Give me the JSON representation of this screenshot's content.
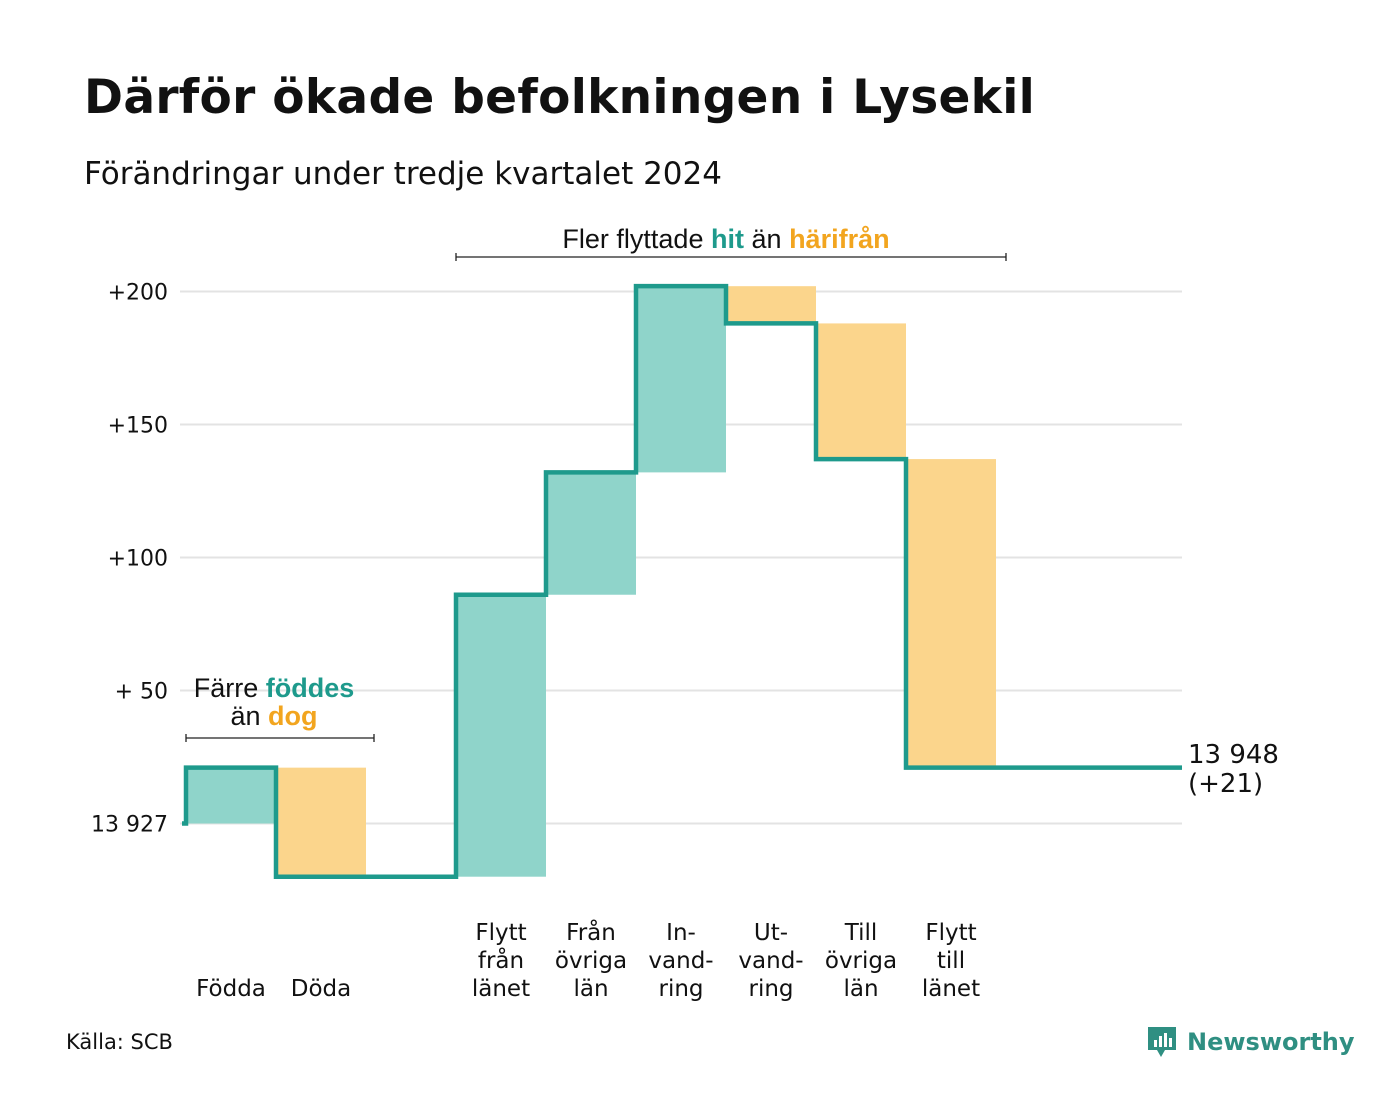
{
  "title": "Därför ökade befolkningen i Lysekil",
  "subtitle": "Förändringar under tredje kvartalet 2024",
  "source": "Källa: SCB",
  "brand": "Newsworthy",
  "colors": {
    "increase_fill": "#8fd4ca",
    "decrease_fill": "#fbd58c",
    "step_line": "#1e9a8c",
    "grid": "#e3e3e3",
    "highlight_in": "#1e9a8c",
    "highlight_out": "#f2a51f"
  },
  "annotations": {
    "natural": {
      "line1_a": "Färre",
      "line1_b": "föddes",
      "line2_a": "än",
      "line2_b": "dog"
    },
    "migration": {
      "a": "Fler flyttade",
      "b": "hit",
      "c": "än",
      "d": "härifrån"
    }
  },
  "end_label": {
    "value": "13 948",
    "change": "(+21)"
  },
  "chart_data": {
    "type": "waterfall",
    "start_value": 13927,
    "end_value": 13948,
    "net_change": 21,
    "ylim": [
      -20,
      205
    ],
    "yticks": [
      {
        "value": 0,
        "label": "13 927"
      },
      {
        "value": 50,
        "label": "+ 50"
      },
      {
        "value": 100,
        "label": "+100"
      },
      {
        "value": 150,
        "label": "+150"
      },
      {
        "value": 200,
        "label": "+200"
      }
    ],
    "steps": [
      {
        "lines": [
          "Födda"
        ],
        "change": 21,
        "kind": "increase"
      },
      {
        "lines": [
          "Döda"
        ],
        "change": -41,
        "kind": "decrease"
      },
      {
        "lines": [],
        "change": 0,
        "kind": "spacer"
      },
      {
        "lines": [
          "Flytt",
          "från",
          "länet"
        ],
        "change": 106,
        "kind": "increase"
      },
      {
        "lines": [
          "Från",
          "övriga",
          "län"
        ],
        "change": 46,
        "kind": "increase"
      },
      {
        "lines": [
          "In-",
          "vand-",
          "ring"
        ],
        "change": 70,
        "kind": "increase"
      },
      {
        "lines": [
          "Ut-",
          "vand-",
          "ring"
        ],
        "change": -14,
        "kind": "decrease"
      },
      {
        "lines": [
          "Till",
          "övriga",
          "län"
        ],
        "change": -51,
        "kind": "decrease"
      },
      {
        "lines": [
          "Flytt",
          "till",
          "länet"
        ],
        "change": -116,
        "kind": "decrease"
      }
    ]
  }
}
